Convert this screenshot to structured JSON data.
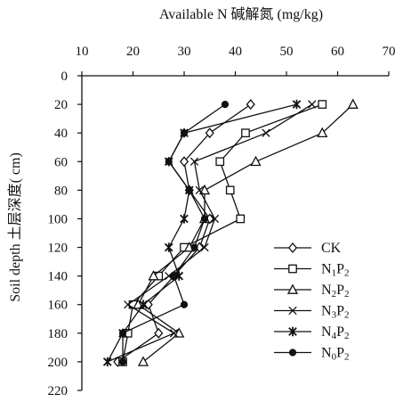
{
  "chart_data": {
    "type": "line",
    "orientation": "depth-profile",
    "title": "",
    "xlabel": "Available N 碱解氮 (mg/kg)",
    "ylabel": "Soil depth 土层深度( cm)",
    "xlim": [
      10,
      70
    ],
    "ylim": [
      0,
      220
    ],
    "y_inverted": true,
    "x_axis_position": "top",
    "x_ticks": [
      10,
      20,
      30,
      40,
      50,
      60,
      70
    ],
    "y_ticks": [
      0,
      20,
      40,
      60,
      80,
      100,
      120,
      140,
      160,
      180,
      200,
      220
    ],
    "grid": false,
    "legend_position": "bottom-right",
    "series": [
      {
        "name": "CK",
        "marker": "diamond",
        "points": [
          {
            "x": 43,
            "y": 20
          },
          {
            "x": 35,
            "y": 40
          },
          {
            "x": 30,
            "y": 60
          },
          {
            "x": 31,
            "y": 80
          },
          {
            "x": 35,
            "y": 100
          },
          {
            "x": 33,
            "y": 120
          },
          {
            "x": 28,
            "y": 140
          },
          {
            "x": 23,
            "y": 160
          },
          {
            "x": 25,
            "y": 180
          },
          {
            "x": 17,
            "y": 200
          }
        ]
      },
      {
        "name": "N1P2",
        "name_parts": {
          "a": "N",
          "b": "1",
          "c": "P",
          "d": "2"
        },
        "marker": "square",
        "points": [
          {
            "x": 57,
            "y": 20
          },
          {
            "x": 42,
            "y": 40
          },
          {
            "x": 37,
            "y": 60
          },
          {
            "x": 39,
            "y": 80
          },
          {
            "x": 41,
            "y": 100
          },
          {
            "x": 30,
            "y": 120
          },
          {
            "x": 25,
            "y": 140
          },
          {
            "x": 20,
            "y": 160
          },
          {
            "x": 19,
            "y": 180
          },
          {
            "x": 18,
            "y": 200
          }
        ]
      },
      {
        "name": "N2P2",
        "name_parts": {
          "a": "N",
          "b": "2",
          "c": "P",
          "d": "2"
        },
        "marker": "triangle",
        "points": [
          {
            "x": 63,
            "y": 20
          },
          {
            "x": 57,
            "y": 40
          },
          {
            "x": 44,
            "y": 60
          },
          {
            "x": 34,
            "y": 80
          },
          {
            "x": 34,
            "y": 100
          },
          {
            "x": 31,
            "y": 120
          },
          {
            "x": 24,
            "y": 140
          },
          {
            "x": 21,
            "y": 160
          },
          {
            "x": 29,
            "y": 180
          },
          {
            "x": 22,
            "y": 200
          }
        ]
      },
      {
        "name": "N3P2",
        "name_parts": {
          "a": "N",
          "b": "3",
          "c": "P",
          "d": "2"
        },
        "marker": "cross",
        "points": [
          {
            "x": 55,
            "y": 20
          },
          {
            "x": 46,
            "y": 40
          },
          {
            "x": 32,
            "y": 60
          },
          {
            "x": 33,
            "y": 80
          },
          {
            "x": 36,
            "y": 100
          },
          {
            "x": 34,
            "y": 120
          },
          {
            "x": 27,
            "y": 140
          },
          {
            "x": 19,
            "y": 160
          },
          {
            "x": 28,
            "y": 180
          },
          {
            "x": 15,
            "y": 200
          }
        ]
      },
      {
        "name": "N4P2",
        "name_parts": {
          "a": "N",
          "b": "4",
          "c": "P",
          "d": "2"
        },
        "marker": "asterisk",
        "points": [
          {
            "x": 52,
            "y": 20
          },
          {
            "x": 30,
            "y": 40
          },
          {
            "x": 27,
            "y": 60
          },
          {
            "x": 31,
            "y": 80
          },
          {
            "x": 30,
            "y": 100
          },
          {
            "x": 27,
            "y": 120
          },
          {
            "x": 29,
            "y": 140
          },
          {
            "x": 22,
            "y": 160
          },
          {
            "x": 18,
            "y": 180
          },
          {
            "x": 15,
            "y": 200
          }
        ]
      },
      {
        "name": "N0P2",
        "name_parts": {
          "a": "N",
          "b": "0",
          "c": "P",
          "d": "2"
        },
        "marker": "dot",
        "points": [
          {
            "x": 38,
            "y": 20
          },
          {
            "x": 30,
            "y": 40
          },
          {
            "x": 27,
            "y": 60
          },
          {
            "x": 31,
            "y": 80
          },
          {
            "x": 34,
            "y": 100
          },
          {
            "x": 32,
            "y": 120
          },
          {
            "x": 28,
            "y": 140
          },
          {
            "x": 30,
            "y": 160
          },
          {
            "x": 18,
            "y": 180
          },
          {
            "x": 18,
            "y": 200
          }
        ]
      }
    ]
  },
  "colors": {
    "ink": "#111111",
    "background": "#ffffff"
  }
}
